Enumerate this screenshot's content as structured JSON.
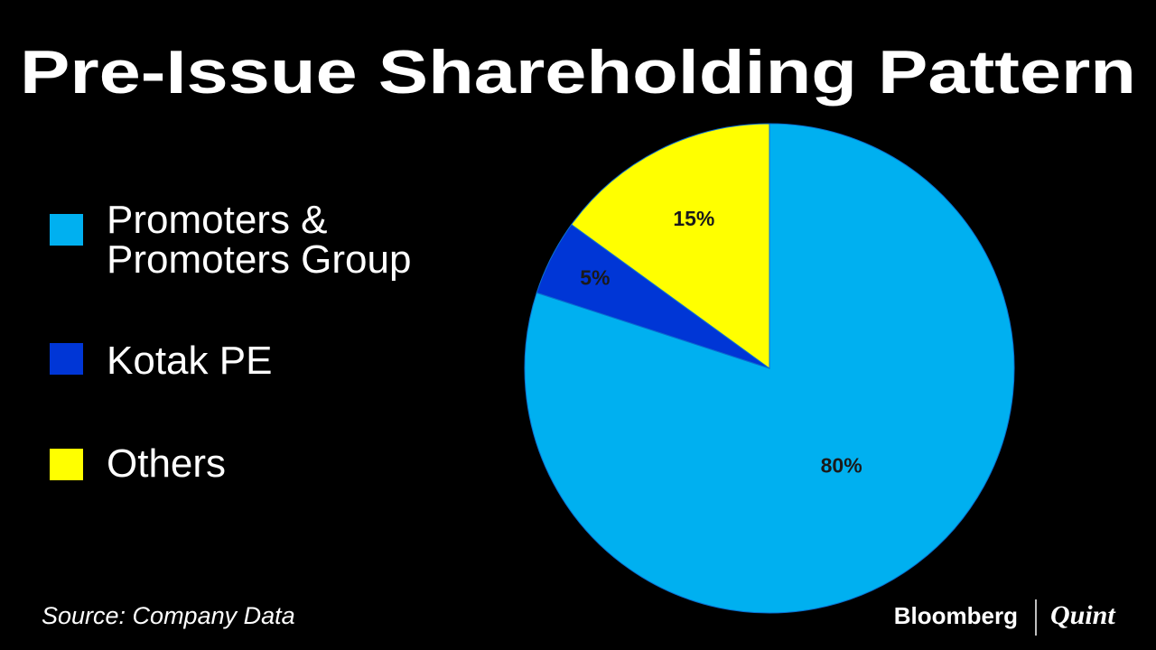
{
  "chart_data": {
    "type": "pie",
    "title": "Pre-Issue Shareholding Pattern",
    "categories": [
      "Promoters & Promoters Group",
      "Kotak PE",
      "Others"
    ],
    "values": [
      80,
      5,
      15
    ],
    "value_labels": [
      "80%",
      "5%",
      "15%"
    ],
    "colors": [
      "#00b0f0",
      "#0036d6",
      "#ffff00"
    ],
    "source": "Source: Company Data"
  },
  "branding": {
    "left": "Bloomberg",
    "right": "Quint"
  }
}
